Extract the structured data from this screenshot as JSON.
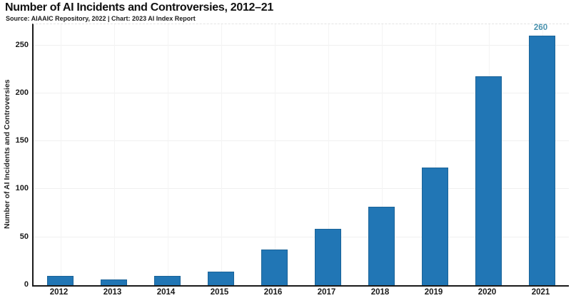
{
  "header": {
    "title": "Number of AI Incidents and Controversies, 2012–21",
    "source": "Source: AIAAIC Repository, 2022 | Chart: 2023 AI Index Report"
  },
  "chart_data": {
    "type": "bar",
    "title": "Number of AI Incidents and Controversies, 2012–21",
    "subtitle": "Source: AIAAIC Repository, 2022 | Chart: 2023 AI Index Report",
    "categories": [
      "2012",
      "2013",
      "2014",
      "2015",
      "2016",
      "2017",
      "2018",
      "2019",
      "2020",
      "2021"
    ],
    "values": [
      10,
      6,
      10,
      14,
      37,
      59,
      82,
      123,
      218,
      260
    ],
    "xlabel": "",
    "ylabel": "Number of AI Incidents and Controversies",
    "ylim": [
      0,
      272
    ],
    "yticks": [
      0,
      50,
      100,
      150,
      200,
      250
    ],
    "grid": true,
    "legend": "none",
    "bar_color": "#2176b5",
    "bar_edge_color": "#1a6398",
    "annotation": {
      "category": "2021",
      "text": "260",
      "color": "#4a93af"
    }
  }
}
